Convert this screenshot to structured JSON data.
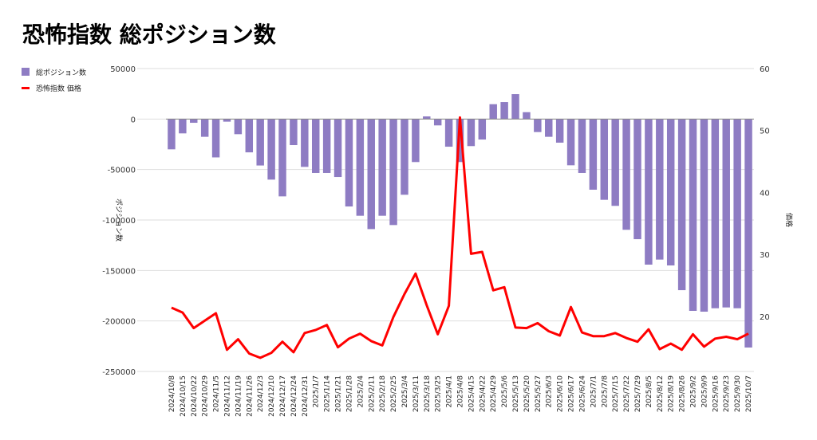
{
  "title": "恐怖指数 総ポジション数",
  "chart_data": {
    "type": "bar+line",
    "title": "恐怖指数 総ポジション数",
    "legend_placement": "top-left",
    "left_axis_label": "ポジション数",
    "right_axis_label": "価格",
    "left_ylim": [
      -250000,
      50000
    ],
    "left_ticks": [
      50000,
      0,
      -50000,
      -100000,
      -150000,
      -200000,
      -250000
    ],
    "right_ylim": [
      11.1,
      60
    ],
    "right_ticks": [
      60,
      50,
      40,
      30,
      20
    ],
    "grid": true,
    "categories": [
      "2024/10/8",
      "2024/10/15",
      "2024/10/22",
      "2024/10/29",
      "2024/11/5",
      "2024/11/12",
      "2024/11/19",
      "2024/11/26",
      "2024/12/3",
      "2024/12/10",
      "2024/12/17",
      "2024/12/24",
      "2024/12/31",
      "2025/1/7",
      "2025/1/14",
      "2025/1/21",
      "2025/1/28",
      "2025/2/4",
      "2025/2/11",
      "2025/2/18",
      "2025/2/25",
      "2025/3/4",
      "2025/3/11",
      "2025/3/18",
      "2025/3/25",
      "2025/4/1",
      "2025/4/8",
      "2025/4/15",
      "2025/4/22",
      "2025/4/29",
      "2025/5/6",
      "2025/5/13",
      "2025/5/20",
      "2025/5/27",
      "2025/6/3",
      "2025/6/10",
      "2025/6/17",
      "2025/6/24",
      "2025/7/1",
      "2025/7/8",
      "2025/7/15",
      "2025/7/22",
      "2025/7/29",
      "2025/8/5",
      "2025/8/12",
      "2025/8/19",
      "2025/8/26",
      "2025/9/2",
      "2025/9/9",
      "2025/9/16",
      "2025/9/23",
      "2025/9/30",
      "2025/10/7"
    ],
    "series": [
      {
        "name": "総ポジション数",
        "type": "bar",
        "axis": "left",
        "color": "#8e7cc3",
        "values": [
          -30000,
          -14200,
          -3700,
          -17600,
          -38000,
          -2600,
          -15000,
          -33000,
          -46000,
          -60000,
          -76600,
          -25800,
          -47400,
          -53400,
          -53400,
          -57400,
          -86600,
          -95800,
          -109000,
          -95800,
          -105000,
          -75000,
          -42600,
          2600,
          -6300,
          -27400,
          -42600,
          -26800,
          -20300,
          14700,
          16800,
          24700,
          6800,
          -12900,
          -17600,
          -23400,
          -45800,
          -53400,
          -70000,
          -80000,
          -86000,
          -109700,
          -119000,
          -144200,
          -139200,
          -145000,
          -169500,
          -190000,
          -190800,
          -187400,
          -186600,
          -187400,
          -226300
        ]
      },
      {
        "name": "恐怖指数 価格",
        "type": "line",
        "axis": "right",
        "color": "#ff0000",
        "values": [
          21.4,
          20.6,
          18.1,
          19.3,
          20.5,
          14.6,
          16.3,
          14.0,
          13.3,
          14.1,
          15.9,
          14.2,
          17.3,
          17.8,
          18.6,
          15.0,
          16.4,
          17.2,
          16.0,
          15.3,
          19.9,
          23.6,
          26.9,
          21.8,
          17.1,
          21.7,
          52.1,
          30.1,
          30.4,
          24.2,
          24.7,
          18.2,
          18.1,
          18.9,
          17.6,
          16.9,
          21.5,
          17.4,
          16.8,
          16.8,
          17.3,
          16.5,
          15.9,
          17.9,
          14.7,
          15.6,
          14.6,
          17.1,
          15.1,
          16.4,
          16.7,
          16.3,
          17.2
        ]
      }
    ]
  }
}
